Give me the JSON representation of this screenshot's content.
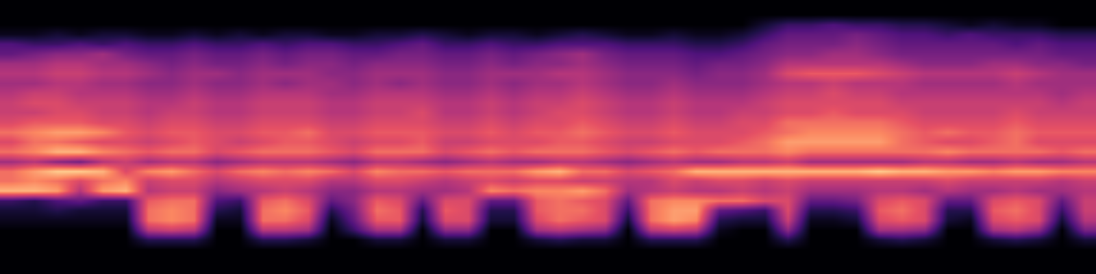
{
  "chart_data": {
    "type": "heatmap",
    "tick_labels": false,
    "zlim": [
      0,
      1
    ],
    "z": [
      [
        0,
        0,
        0,
        0,
        0,
        0,
        0,
        0,
        0,
        0,
        0,
        0,
        0,
        0,
        0,
        0,
        0,
        0,
        0,
        0,
        0,
        0,
        0,
        0,
        0,
        0,
        0,
        0,
        0,
        0,
        0,
        0,
        0,
        0,
        0,
        0,
        0,
        0,
        0,
        0,
        0,
        0,
        0,
        0,
        0,
        0,
        0,
        0
      ],
      [
        0,
        0,
        0,
        0,
        0,
        0,
        0,
        0,
        0,
        0,
        0,
        0,
        0,
        0,
        0,
        0,
        0,
        0,
        0,
        0,
        0,
        0,
        0,
        0,
        0,
        0,
        0,
        0,
        0,
        0,
        0,
        0,
        0,
        0,
        0,
        0,
        0,
        0,
        0,
        0,
        0,
        0,
        0,
        0,
        0,
        0,
        0,
        0
      ],
      [
        0,
        0,
        0,
        0,
        0,
        0,
        0,
        0,
        0,
        0,
        0,
        0,
        0,
        0,
        0,
        0,
        0,
        0,
        0,
        0,
        0,
        0,
        0,
        0,
        0,
        0,
        0,
        0,
        0,
        0,
        0,
        0,
        0,
        0.1,
        0.2,
        0.2,
        0.25,
        0.2,
        0.2,
        0.15,
        0.15,
        0.1,
        0.05,
        0.1,
        0.05,
        0.05,
        0,
        0
      ],
      [
        0.05,
        0.05,
        0.1,
        0.05,
        0.1,
        0.1,
        0.05,
        0.05,
        0.1,
        0.05,
        0.1,
        0.05,
        0.1,
        0.1,
        0.05,
        0.05,
        0.1,
        0.1,
        0.15,
        0.1,
        0.05,
        0.1,
        0.1,
        0.05,
        0.1,
        0.15,
        0.1,
        0.05,
        0.05,
        0.1,
        0.05,
        0.05,
        0.1,
        0.2,
        0.3,
        0.3,
        0.3,
        0.35,
        0.3,
        0.25,
        0.25,
        0.2,
        0.25,
        0.2,
        0.2,
        0.2,
        0.15,
        0.15
      ],
      [
        0.25,
        0.2,
        0.2,
        0.25,
        0.2,
        0.25,
        0.2,
        0.2,
        0.25,
        0.2,
        0.2,
        0.25,
        0.2,
        0.25,
        0.25,
        0.2,
        0.2,
        0.25,
        0.3,
        0.2,
        0.2,
        0.25,
        0.2,
        0.2,
        0.25,
        0.25,
        0.25,
        0.2,
        0.2,
        0.2,
        0.15,
        0.15,
        0.2,
        0.3,
        0.35,
        0.35,
        0.35,
        0.4,
        0.35,
        0.3,
        0.3,
        0.3,
        0.3,
        0.3,
        0.25,
        0.3,
        0.25,
        0.25
      ],
      [
        0.3,
        0.35,
        0.4,
        0.4,
        0.45,
        0.35,
        0.3,
        0.3,
        0.35,
        0.3,
        0.3,
        0.35,
        0.3,
        0.35,
        0.35,
        0.3,
        0.3,
        0.35,
        0.35,
        0.3,
        0.3,
        0.35,
        0.3,
        0.35,
        0.4,
        0.45,
        0.35,
        0.3,
        0.3,
        0.3,
        0.25,
        0.25,
        0.3,
        0.35,
        0.4,
        0.4,
        0.45,
        0.45,
        0.4,
        0.35,
        0.35,
        0.35,
        0.35,
        0.35,
        0.35,
        0.35,
        0.3,
        0.3
      ],
      [
        0.45,
        0.45,
        0.5,
        0.5,
        0.45,
        0.45,
        0.4,
        0.35,
        0.4,
        0.35,
        0.35,
        0.4,
        0.35,
        0.4,
        0.4,
        0.35,
        0.4,
        0.4,
        0.4,
        0.35,
        0.35,
        0.4,
        0.35,
        0.4,
        0.4,
        0.45,
        0.4,
        0.35,
        0.35,
        0.35,
        0.3,
        0.35,
        0.35,
        0.4,
        0.5,
        0.5,
        0.5,
        0.5,
        0.5,
        0.45,
        0.4,
        0.4,
        0.4,
        0.45,
        0.45,
        0.4,
        0.4,
        0.35
      ],
      [
        0.5,
        0.5,
        0.55,
        0.55,
        0.5,
        0.5,
        0.45,
        0.4,
        0.45,
        0.45,
        0.4,
        0.45,
        0.45,
        0.45,
        0.4,
        0.4,
        0.45,
        0.45,
        0.45,
        0.4,
        0.4,
        0.45,
        0.45,
        0.45,
        0.5,
        0.5,
        0.45,
        0.4,
        0.4,
        0.4,
        0.35,
        0.4,
        0.4,
        0.45,
        0.6,
        0.65,
        0.65,
        0.65,
        0.6,
        0.55,
        0.5,
        0.5,
        0.5,
        0.5,
        0.55,
        0.5,
        0.45,
        0.45
      ],
      [
        0.45,
        0.45,
        0.5,
        0.5,
        0.45,
        0.45,
        0.4,
        0.4,
        0.45,
        0.4,
        0.4,
        0.45,
        0.4,
        0.45,
        0.45,
        0.4,
        0.45,
        0.4,
        0.45,
        0.4,
        0.4,
        0.45,
        0.4,
        0.45,
        0.45,
        0.5,
        0.45,
        0.4,
        0.4,
        0.45,
        0.4,
        0.4,
        0.4,
        0.45,
        0.5,
        0.5,
        0.55,
        0.5,
        0.5,
        0.5,
        0.45,
        0.45,
        0.45,
        0.45,
        0.5,
        0.45,
        0.45,
        0.45
      ],
      [
        0.5,
        0.55,
        0.55,
        0.5,
        0.5,
        0.5,
        0.45,
        0.45,
        0.5,
        0.45,
        0.45,
        0.5,
        0.5,
        0.5,
        0.45,
        0.45,
        0.5,
        0.5,
        0.5,
        0.45,
        0.45,
        0.5,
        0.45,
        0.5,
        0.5,
        0.55,
        0.5,
        0.45,
        0.45,
        0.5,
        0.45,
        0.45,
        0.45,
        0.5,
        0.55,
        0.55,
        0.6,
        0.55,
        0.55,
        0.5,
        0.5,
        0.5,
        0.5,
        0.5,
        0.5,
        0.5,
        0.45,
        0.5
      ],
      [
        0.55,
        0.6,
        0.6,
        0.55,
        0.55,
        0.55,
        0.5,
        0.5,
        0.55,
        0.5,
        0.5,
        0.55,
        0.55,
        0.55,
        0.5,
        0.5,
        0.55,
        0.55,
        0.55,
        0.5,
        0.5,
        0.55,
        0.5,
        0.55,
        0.55,
        0.6,
        0.55,
        0.5,
        0.5,
        0.55,
        0.5,
        0.5,
        0.5,
        0.55,
        0.6,
        0.6,
        0.6,
        0.6,
        0.6,
        0.55,
        0.55,
        0.55,
        0.55,
        0.55,
        0.55,
        0.55,
        0.5,
        0.55
      ],
      [
        0.55,
        0.55,
        0.6,
        0.6,
        0.55,
        0.55,
        0.5,
        0.55,
        0.55,
        0.5,
        0.5,
        0.55,
        0.55,
        0.55,
        0.5,
        0.5,
        0.55,
        0.55,
        0.6,
        0.5,
        0.5,
        0.55,
        0.5,
        0.55,
        0.6,
        0.6,
        0.55,
        0.5,
        0.5,
        0.55,
        0.5,
        0.5,
        0.55,
        0.55,
        0.6,
        0.6,
        0.65,
        0.6,
        0.6,
        0.6,
        0.55,
        0.55,
        0.55,
        0.55,
        0.6,
        0.55,
        0.55,
        0.55
      ],
      [
        0.6,
        0.65,
        0.65,
        0.65,
        0.6,
        0.6,
        0.55,
        0.6,
        0.6,
        0.55,
        0.55,
        0.6,
        0.6,
        0.6,
        0.55,
        0.55,
        0.6,
        0.6,
        0.6,
        0.55,
        0.55,
        0.6,
        0.55,
        0.6,
        0.6,
        0.65,
        0.6,
        0.55,
        0.55,
        0.6,
        0.55,
        0.55,
        0.6,
        0.6,
        0.7,
        0.7,
        0.7,
        0.7,
        0.7,
        0.65,
        0.6,
        0.6,
        0.6,
        0.6,
        0.65,
        0.6,
        0.6,
        0.6
      ],
      [
        0.7,
        0.75,
        0.8,
        0.8,
        0.75,
        0.65,
        0.6,
        0.65,
        0.65,
        0.6,
        0.6,
        0.65,
        0.65,
        0.7,
        0.6,
        0.6,
        0.65,
        0.65,
        0.65,
        0.6,
        0.6,
        0.65,
        0.6,
        0.65,
        0.65,
        0.7,
        0.65,
        0.6,
        0.6,
        0.65,
        0.6,
        0.6,
        0.6,
        0.65,
        0.7,
        0.75,
        0.75,
        0.75,
        0.75,
        0.7,
        0.65,
        0.7,
        0.65,
        0.65,
        0.7,
        0.65,
        0.65,
        0.65
      ],
      [
        0.6,
        0.7,
        0.7,
        0.65,
        0.6,
        0.6,
        0.55,
        0.6,
        0.65,
        0.6,
        0.55,
        0.6,
        0.65,
        0.65,
        0.6,
        0.55,
        0.6,
        0.6,
        0.65,
        0.55,
        0.55,
        0.6,
        0.6,
        0.6,
        0.65,
        0.65,
        0.6,
        0.55,
        0.55,
        0.6,
        0.6,
        0.6,
        0.65,
        0.7,
        0.8,
        0.8,
        0.8,
        0.8,
        0.8,
        0.7,
        0.65,
        0.6,
        0.6,
        0.65,
        0.7,
        0.6,
        0.6,
        0.6
      ],
      [
        0.7,
        0.75,
        0.85,
        0.85,
        0.75,
        0.7,
        0.65,
        0.7,
        0.7,
        0.6,
        0.65,
        0.7,
        0.7,
        0.7,
        0.65,
        0.6,
        0.7,
        0.7,
        0.7,
        0.6,
        0.65,
        0.7,
        0.65,
        0.7,
        0.7,
        0.7,
        0.65,
        0.6,
        0.65,
        0.7,
        0.65,
        0.7,
        0.7,
        0.7,
        0.75,
        0.7,
        0.7,
        0.7,
        0.7,
        0.7,
        0.7,
        0.75,
        0.7,
        0.7,
        0.7,
        0.7,
        0.65,
        0.7
      ],
      [
        0.45,
        0.5,
        0.4,
        0.35,
        0.5,
        0.55,
        0.45,
        0.5,
        0.5,
        0.4,
        0.45,
        0.5,
        0.5,
        0.5,
        0.45,
        0.4,
        0.5,
        0.5,
        0.45,
        0.4,
        0.45,
        0.5,
        0.45,
        0.45,
        0.5,
        0.5,
        0.45,
        0.4,
        0.45,
        0.5,
        0.45,
        0.45,
        0.5,
        0.5,
        0.55,
        0.45,
        0.45,
        0.45,
        0.45,
        0.45,
        0.5,
        0.5,
        0.45,
        0.45,
        0.5,
        0.45,
        0.45,
        0.5
      ],
      [
        0.7,
        0.8,
        0.9,
        0.9,
        0.85,
        0.6,
        0.75,
        0.8,
        0.7,
        0.6,
        0.7,
        0.75,
        0.7,
        0.75,
        0.7,
        0.6,
        0.75,
        0.7,
        0.7,
        0.65,
        0.7,
        0.7,
        0.7,
        0.8,
        0.85,
        0.7,
        0.7,
        0.6,
        0.65,
        0.7,
        0.85,
        0.85,
        0.85,
        0.85,
        0.85,
        0.85,
        0.85,
        0.85,
        0.9,
        0.85,
        0.85,
        0.8,
        0.8,
        0.75,
        0.8,
        0.8,
        0.75,
        0.75
      ],
      [
        0.7,
        0.75,
        0.7,
        0.6,
        0.7,
        0.75,
        0.55,
        0.6,
        0.6,
        0.5,
        0.55,
        0.6,
        0.6,
        0.6,
        0.5,
        0.5,
        0.6,
        0.6,
        0.55,
        0.5,
        0.55,
        0.6,
        0.55,
        0.6,
        0.6,
        0.55,
        0.55,
        0.5,
        0.5,
        0.6,
        0.55,
        0.6,
        0.6,
        0.55,
        0.6,
        0.55,
        0.55,
        0.55,
        0.55,
        0.55,
        0.55,
        0.6,
        0.55,
        0.55,
        0.55,
        0.55,
        0.5,
        0.55
      ],
      [
        0.85,
        0.85,
        0.8,
        0.5,
        0.8,
        0.85,
        0.5,
        0.55,
        0.55,
        0.4,
        0.45,
        0.5,
        0.55,
        0.5,
        0.4,
        0.4,
        0.5,
        0.5,
        0.45,
        0.45,
        0.5,
        0.75,
        0.7,
        0.75,
        0.75,
        0.8,
        0.7,
        0.45,
        0.5,
        0.55,
        0.5,
        0.5,
        0.55,
        0.5,
        0.55,
        0.45,
        0.45,
        0.45,
        0.5,
        0.5,
        0.45,
        0.5,
        0.45,
        0.45,
        0.5,
        0.45,
        0.45,
        0.5
      ],
      [
        0.2,
        0.15,
        0.25,
        0.3,
        0.2,
        0.2,
        0.65,
        0.7,
        0.7,
        0.25,
        0.2,
        0.65,
        0.7,
        0.6,
        0.3,
        0.4,
        0.65,
        0.6,
        0.3,
        0.6,
        0.6,
        0.3,
        0.3,
        0.65,
        0.7,
        0.65,
        0.6,
        0.3,
        0.7,
        0.75,
        0.75,
        0.7,
        0.7,
        0.6,
        0.6,
        0.3,
        0.3,
        0.35,
        0.6,
        0.65,
        0.6,
        0.3,
        0.3,
        0.6,
        0.65,
        0.6,
        0.3,
        0.55
      ],
      [
        0.1,
        0.1,
        0.15,
        0.1,
        0.1,
        0.1,
        0.7,
        0.75,
        0.7,
        0.15,
        0.1,
        0.7,
        0.75,
        0.65,
        0.15,
        0.35,
        0.7,
        0.65,
        0.15,
        0.65,
        0.6,
        0.15,
        0.15,
        0.65,
        0.7,
        0.7,
        0.6,
        0.2,
        0.7,
        0.8,
        0.8,
        0.3,
        0.25,
        0.2,
        0.6,
        0.15,
        0.15,
        0.2,
        0.65,
        0.7,
        0.6,
        0.15,
        0.15,
        0.65,
        0.7,
        0.6,
        0.2,
        0.55
      ],
      [
        0.05,
        0.05,
        0.05,
        0.05,
        0.05,
        0.05,
        0.7,
        0.75,
        0.7,
        0.05,
        0.05,
        0.7,
        0.7,
        0.6,
        0.05,
        0.3,
        0.65,
        0.65,
        0.1,
        0.6,
        0.6,
        0.1,
        0.1,
        0.6,
        0.7,
        0.65,
        0.6,
        0.1,
        0.7,
        0.8,
        0.75,
        0.15,
        0.1,
        0.1,
        0.55,
        0.05,
        0.05,
        0.1,
        0.6,
        0.65,
        0.6,
        0.1,
        0.05,
        0.6,
        0.65,
        0.6,
        0.1,
        0.5
      ],
      [
        0,
        0,
        0,
        0,
        0,
        0,
        0.5,
        0.55,
        0.5,
        0,
        0,
        0.5,
        0.5,
        0.45,
        0,
        0.2,
        0.45,
        0.45,
        0,
        0.4,
        0.4,
        0,
        0,
        0.45,
        0.5,
        0.45,
        0.4,
        0,
        0.5,
        0.55,
        0.5,
        0.05,
        0,
        0,
        0.4,
        0,
        0,
        0,
        0.45,
        0.45,
        0.4,
        0,
        0,
        0.45,
        0.5,
        0.4,
        0,
        0.35
      ],
      [
        0,
        0,
        0,
        0,
        0,
        0,
        0.15,
        0.15,
        0.15,
        0,
        0,
        0.15,
        0.15,
        0.1,
        0,
        0,
        0.1,
        0.1,
        0,
        0.1,
        0.1,
        0,
        0,
        0.1,
        0.15,
        0.1,
        0.1,
        0,
        0.15,
        0.15,
        0.15,
        0,
        0,
        0,
        0.15,
        0,
        0,
        0,
        0.1,
        0.15,
        0.1,
        0,
        0,
        0.1,
        0.15,
        0.1,
        0,
        0.1
      ],
      [
        0,
        0,
        0,
        0,
        0,
        0,
        0,
        0,
        0,
        0,
        0,
        0,
        0,
        0,
        0,
        0,
        0,
        0,
        0,
        0,
        0,
        0,
        0,
        0,
        0,
        0,
        0,
        0,
        0,
        0,
        0,
        0,
        0,
        0,
        0,
        0,
        0,
        0,
        0,
        0,
        0,
        0,
        0,
        0,
        0,
        0,
        0,
        0
      ],
      [
        0,
        0,
        0,
        0,
        0,
        0,
        0,
        0,
        0,
        0,
        0,
        0,
        0,
        0,
        0,
        0,
        0,
        0,
        0,
        0,
        0,
        0,
        0,
        0,
        0,
        0,
        0,
        0,
        0,
        0,
        0,
        0,
        0,
        0,
        0,
        0,
        0,
        0,
        0,
        0,
        0,
        0,
        0,
        0,
        0,
        0,
        0,
        0
      ],
      [
        0,
        0,
        0,
        0,
        0,
        0,
        0,
        0,
        0,
        0,
        0,
        0,
        0,
        0,
        0,
        0,
        0,
        0,
        0,
        0,
        0,
        0,
        0,
        0,
        0,
        0,
        0,
        0,
        0,
        0,
        0,
        0,
        0,
        0,
        0,
        0,
        0,
        0,
        0,
        0,
        0,
        0,
        0,
        0,
        0,
        0,
        0,
        0
      ]
    ]
  }
}
